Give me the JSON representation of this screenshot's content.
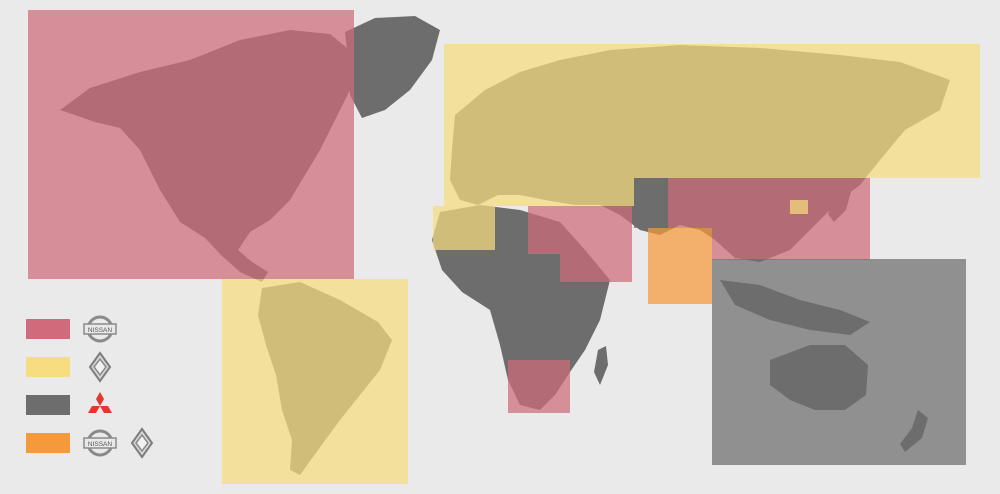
{
  "colors": {
    "background": "#eaeaea",
    "land": "#6d6d6d",
    "nissan": "#cf6b7a",
    "renault": "#f7dd80",
    "mitsubishi": "#6d6d6d",
    "nissan_renault": "#f59a3c"
  },
  "legend": {
    "items": [
      {
        "group": "nissan",
        "logos": [
          "nissan-logo"
        ]
      },
      {
        "group": "renault",
        "logos": [
          "renault-logo"
        ]
      },
      {
        "group": "mitsubishi",
        "logos": [
          "mitsubishi-logo"
        ]
      },
      {
        "group": "nissan_renault",
        "logos": [
          "nissan-logo",
          "renault-logo"
        ]
      }
    ]
  },
  "logos": {
    "nissan_text": "NISSAN"
  },
  "regions": [
    {
      "name": "north-america",
      "group": "nissan"
    },
    {
      "name": "middle-east",
      "group": "nissan"
    },
    {
      "name": "china-east-asia",
      "group": "nissan"
    },
    {
      "name": "south-africa",
      "group": "nissan"
    },
    {
      "name": "south-america",
      "group": "renault"
    },
    {
      "name": "europe-russia",
      "group": "renault"
    },
    {
      "name": "north-africa",
      "group": "renault"
    },
    {
      "name": "korea",
      "group": "renault"
    },
    {
      "name": "india",
      "group": "nissan_renault"
    },
    {
      "name": "oceania-southeast-asia",
      "group": "mitsubishi"
    }
  ]
}
